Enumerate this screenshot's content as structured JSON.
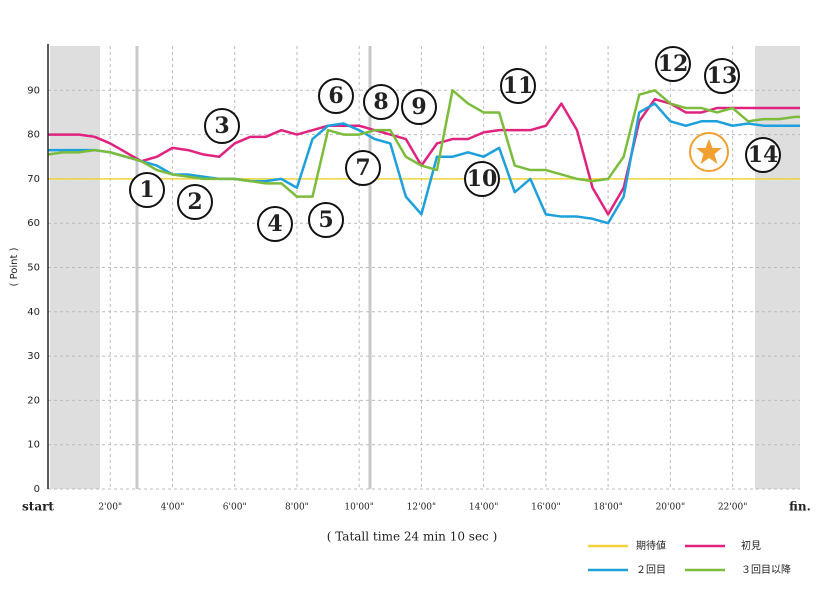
{
  "chart_data": {
    "type": "line",
    "y_label": "( Point )",
    "x_label": "( Tatall time 24 min 10 sec )",
    "x": [
      0,
      0.5,
      1,
      1.5,
      2,
      2.5,
      3,
      3.5,
      4,
      4.5,
      5,
      5.5,
      6,
      6.5,
      7,
      7.5,
      8,
      8.5,
      9,
      9.5,
      10,
      10.5,
      11,
      11.5,
      12,
      12.5,
      13,
      13.5,
      14,
      14.5,
      15,
      15.5,
      16,
      16.5,
      17,
      17.5,
      18,
      18.5,
      19,
      19.5,
      20,
      20.5,
      21,
      21.5,
      22,
      22.5,
      23,
      23.5,
      24,
      24.1667
    ],
    "xlim": [
      0,
      24.1667
    ],
    "xticks": [
      {
        "value": 0,
        "label": "start"
      },
      {
        "value": 2,
        "label": "2'00\""
      },
      {
        "value": 4,
        "label": "4'00\""
      },
      {
        "value": 6,
        "label": "6'00\""
      },
      {
        "value": 8,
        "label": "8'00\""
      },
      {
        "value": 10,
        "label": "10'00\""
      },
      {
        "value": 12,
        "label": "12'00\""
      },
      {
        "value": 14,
        "label": "14'00\""
      },
      {
        "value": 16,
        "label": "16'00\""
      },
      {
        "value": 18,
        "label": "18'00\""
      },
      {
        "value": 20,
        "label": "20'00\""
      },
      {
        "value": 22,
        "label": "22'00\""
      },
      {
        "value": 24.1667,
        "label": "fin."
      }
    ],
    "ylim": [
      0,
      100
    ],
    "yticks": [
      0,
      10,
      20,
      30,
      40,
      50,
      60,
      70,
      80,
      90
    ],
    "grid": true,
    "legend": "bottom-right",
    "series": [
      {
        "name": "期待値",
        "color": "#f2d43a",
        "values": [
          70,
          70,
          70,
          70,
          70,
          70,
          70,
          70,
          70,
          70,
          70,
          70,
          70,
          70,
          70,
          70,
          70,
          70,
          70,
          70,
          70,
          70,
          70,
          70,
          70,
          70,
          70,
          70,
          70,
          70,
          70,
          70,
          70,
          70,
          70,
          70,
          70,
          70,
          70,
          70,
          70,
          70,
          70,
          70,
          70,
          70,
          70,
          70,
          70,
          70
        ]
      },
      {
        "name": "初見",
        "color": "#e0237f",
        "values": [
          80,
          80,
          80,
          79.5,
          78,
          76,
          74,
          75,
          77,
          76.5,
          75.5,
          75,
          78,
          79.5,
          79.5,
          81,
          80,
          81,
          82,
          82,
          82,
          81,
          80,
          79,
          73,
          78,
          79,
          79,
          80.5,
          81,
          81,
          81,
          82,
          87,
          81,
          68,
          62,
          68,
          83,
          88,
          87,
          85,
          85,
          86,
          86,
          86,
          86,
          86,
          86,
          86
        ]
      },
      {
        "name": "２回目",
        "color": "#1ea0dc",
        "values": [
          76.5,
          76.5,
          76.5,
          76.5,
          76,
          75,
          74,
          73,
          71,
          71,
          70.5,
          70,
          70,
          69.5,
          69.5,
          70,
          68,
          79,
          82,
          82.5,
          81,
          79,
          78,
          66,
          62,
          75,
          75,
          76,
          75,
          77,
          67,
          70,
          62,
          61.5,
          61.5,
          61,
          60,
          66,
          85,
          87,
          83,
          82,
          83,
          83,
          82,
          82.5,
          82,
          82,
          82,
          82
        ]
      },
      {
        "name": "３回目以降",
        "color": "#7cbc3c",
        "values": [
          75.5,
          76,
          76,
          76.5,
          76,
          75,
          74,
          72,
          71,
          70.5,
          70,
          70,
          70,
          69.5,
          69,
          69,
          66,
          66,
          81,
          80,
          80,
          81,
          81,
          75,
          73,
          72,
          90,
          87,
          85,
          85,
          73,
          72,
          72,
          71,
          70,
          69.5,
          70,
          75,
          89,
          90,
          87,
          86,
          86,
          85,
          86,
          83,
          83.5,
          83.5,
          84,
          84
        ]
      }
    ],
    "annotations": [
      "1",
      "2",
      "3",
      "4",
      "5",
      "6",
      "7",
      "8",
      "9",
      "10",
      "11",
      "12",
      "13",
      "14"
    ]
  }
}
